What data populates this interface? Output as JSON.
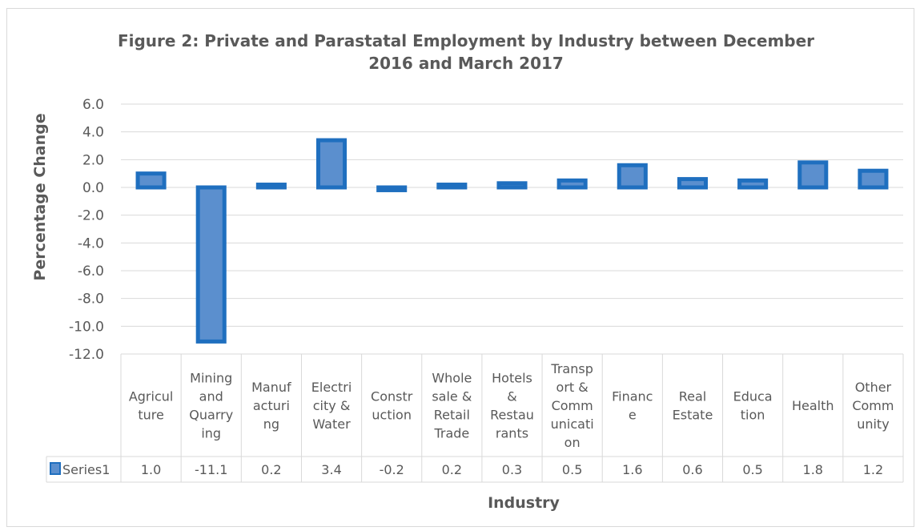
{
  "chart_data": {
    "type": "bar",
    "title_lines": [
      "Figure 2: Private and Parastatal Employment by Industry between December",
      "2016 and March 2017"
    ],
    "xlabel": "Industry",
    "ylabel": "Percentage Change",
    "ylim": [
      -12,
      6
    ],
    "yticks": [
      "6.0",
      "4.0",
      "2.0",
      "0.0",
      "-2.0",
      "-4.0",
      "-6.0",
      "-8.0",
      "-10.0",
      "-12.0"
    ],
    "ytick_values": [
      6,
      4,
      2,
      0,
      -2,
      -4,
      -6,
      -8,
      -10,
      -12
    ],
    "categories": [
      [
        "Agricul",
        "ture"
      ],
      [
        "Mining",
        "and",
        "Quarry",
        "ing"
      ],
      [
        "Manuf",
        "acturi",
        "ng"
      ],
      [
        "Electri",
        "city &",
        "Water"
      ],
      [
        "Constr",
        "uction"
      ],
      [
        "Whole",
        "sale &",
        "Retail",
        "Trade"
      ],
      [
        "Hotels",
        "&",
        "Restau",
        "rants"
      ],
      [
        "Transp",
        "ort &",
        "Comm",
        "unicati",
        "on"
      ],
      [
        "Financ",
        "e"
      ],
      [
        "Real",
        "Estate"
      ],
      [
        "Educa",
        "tion"
      ],
      [
        "Health"
      ],
      [
        "Other",
        "Comm",
        "unity"
      ]
    ],
    "series": [
      {
        "name": "Series1",
        "values": [
          1.0,
          -11.1,
          0.2,
          3.4,
          -0.2,
          0.2,
          0.3,
          0.5,
          1.6,
          0.6,
          0.5,
          1.8,
          1.2
        ],
        "labels": [
          "1.0",
          "-11.1",
          "0.2",
          "3.4",
          "-0.2",
          "0.2",
          "0.3",
          "0.5",
          "1.6",
          "0.6",
          "0.5",
          "1.8",
          "1.2"
        ],
        "color": "#5b8fce",
        "border_color": "#1f6fbf"
      }
    ],
    "grid": true,
    "legend": "data-table"
  }
}
